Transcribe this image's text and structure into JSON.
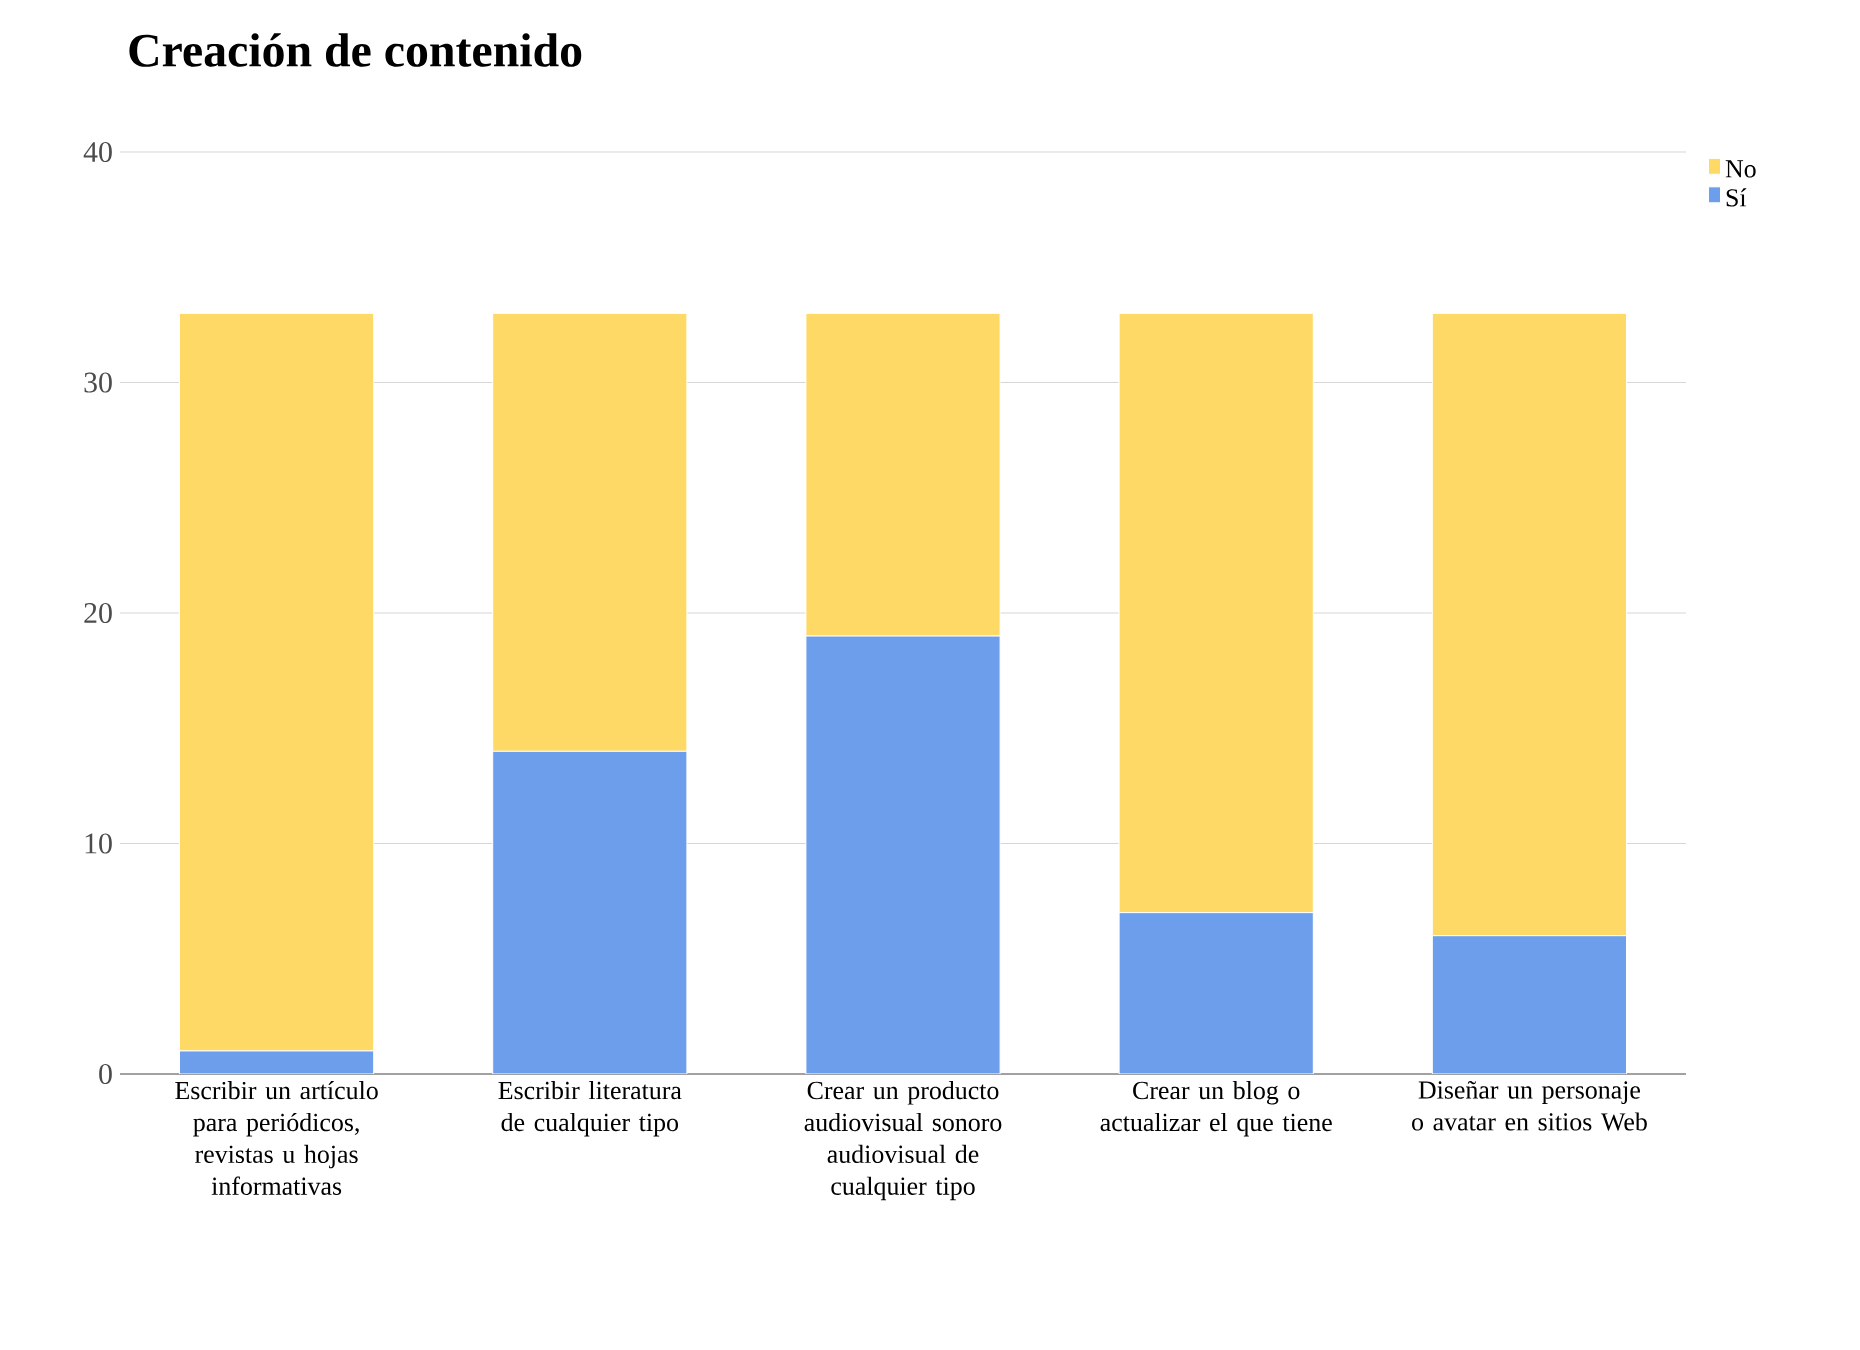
{
  "chart_data": {
    "type": "bar",
    "stacked": true,
    "title": "Creación de contenido",
    "categories": [
      "Escribir un artículo para periódicos, revistas u hojas informativas",
      "Escribir literatura de cualquier tipo",
      "Crear un producto audiovisual sonoro audiovisual de cualquier tipo",
      "Crear un blog o actualizar el que tiene",
      "Diseñar un personaje o avatar en sitios Web"
    ],
    "series": [
      {
        "name": "Sí",
        "color": "#6d9eeb",
        "values": [
          1,
          14,
          19,
          7,
          6
        ]
      },
      {
        "name": "No",
        "color": "#ffd966",
        "values": [
          32,
          19,
          14,
          26,
          27
        ]
      }
    ],
    "ylim": [
      0,
      40
    ],
    "yticks": [
      0,
      10,
      20,
      30,
      40
    ],
    "grid": "y",
    "legend": "top right"
  }
}
